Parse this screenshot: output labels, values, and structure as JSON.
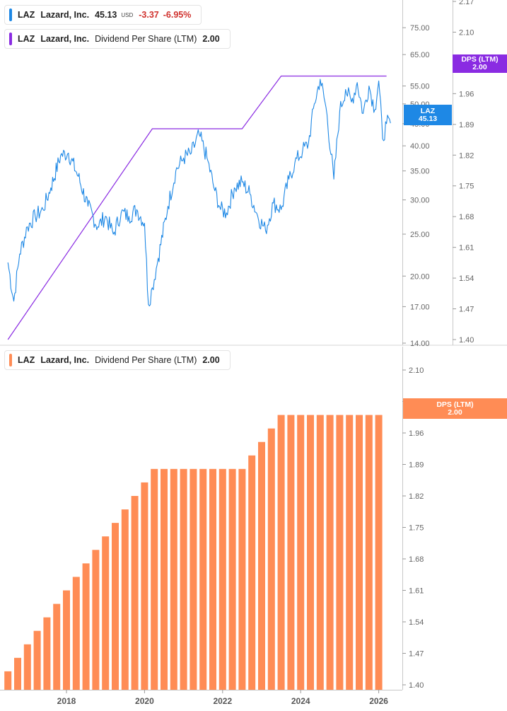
{
  "colors": {
    "price": "#1e88e5",
    "dps_line": "#8a2be2",
    "dps_bars": "#ff8c55",
    "negative": "#d0312d"
  },
  "legend_price": {
    "ticker": "LAZ",
    "name": "Lazard, Inc.",
    "price": "45.13",
    "currency": "USD",
    "change": "-3.37",
    "change_pct": "-6.95%"
  },
  "legend_dps_top": {
    "ticker": "LAZ",
    "name": "Lazard, Inc.",
    "metric": "Dividend Per Share (LTM)",
    "value": "2.00"
  },
  "legend_dps_bottom": {
    "ticker": "LAZ",
    "name": "Lazard, Inc.",
    "metric": "Dividend Per Share (LTM)",
    "value": "2.00"
  },
  "flags": {
    "price_ticker": "LAZ",
    "price_value": "45.13",
    "dps_top_label": "DPS (LTM)",
    "dps_top_value": "2.00",
    "dps_bottom_label": "DPS (LTM)",
    "dps_bottom_value": "2.00"
  },
  "chart_data": [
    {
      "type": "line",
      "scale": "log",
      "y_axis_ticks": [
        "75.00",
        "65.00",
        "55.00",
        "50.00",
        "45.00",
        "40.00",
        "35.00",
        "30.00",
        "25.00",
        "20.00",
        "17.00",
        "14.00"
      ],
      "ylim": [
        14,
        88
      ],
      "series": [
        {
          "name": "LAZ",
          "x": [
            2016.5,
            2016.65,
            2016.8,
            2017.0,
            2017.2,
            2017.4,
            2017.6,
            2017.85,
            2018.05,
            2018.3,
            2018.55,
            2018.8,
            2019.0,
            2019.2,
            2019.4,
            2019.6,
            2019.8,
            2020.0,
            2020.1,
            2020.2,
            2020.35,
            2020.6,
            2020.8,
            2021.0,
            2021.2,
            2021.4,
            2021.6,
            2021.8,
            2021.95,
            2022.1,
            2022.3,
            2022.5,
            2022.7,
            2022.9,
            2023.1,
            2023.3,
            2023.5,
            2023.7,
            2023.85,
            2024.05,
            2024.2,
            2024.35,
            2024.5,
            2024.65,
            2024.85,
            2025.0,
            2025.15,
            2025.3,
            2025.45,
            2025.6,
            2025.75,
            2025.9,
            2026.0,
            2026.1,
            2026.2,
            2026.3
          ],
          "y": [
            21.5,
            17.5,
            22.5,
            26.0,
            27.5,
            28.5,
            32.0,
            38.0,
            38.5,
            34.0,
            29.0,
            26.0,
            27.5,
            25.0,
            28.0,
            27.5,
            28.5,
            26.5,
            17.2,
            18.8,
            22.0,
            29.0,
            35.0,
            37.5,
            38.5,
            42.5,
            37.5,
            31.5,
            28.5,
            28.0,
            32.0,
            33.0,
            31.0,
            27.5,
            25.5,
            29.5,
            28.5,
            33.5,
            36.5,
            39.0,
            40.5,
            50.0,
            57.0,
            49.0,
            33.5,
            48.0,
            54.0,
            50.5,
            56.0,
            47.5,
            55.0,
            48.5,
            56.5,
            41.5,
            45.0,
            45.13
          ]
        },
        {
          "name": "DPS (LTM)",
          "x": [
            2016.5,
            2020.2,
            2022.5,
            2023.5,
            2026.2
          ],
          "y": [
            1.4,
            1.88,
            1.88,
            2.0,
            2.0
          ]
        }
      ],
      "right_axis_ticks": [
        "2.17",
        "2.10",
        "2.03",
        "1.96",
        "1.89",
        "1.82",
        "1.75",
        "1.68",
        "1.61",
        "1.54",
        "1.47",
        "1.40"
      ]
    },
    {
      "type": "bar",
      "series": [
        {
          "name": "DPS (LTM)",
          "x": [
            2016.5,
            2016.75,
            2017.0,
            2017.25,
            2017.5,
            2017.75,
            2018.0,
            2018.25,
            2018.5,
            2018.75,
            2019.0,
            2019.25,
            2019.5,
            2019.75,
            2020.0,
            2020.25,
            2020.5,
            2020.75,
            2021.0,
            2021.25,
            2021.5,
            2021.75,
            2022.0,
            2022.25,
            2022.5,
            2022.75,
            2023.0,
            2023.25,
            2023.5,
            2023.75,
            2024.0,
            2024.25,
            2024.5,
            2024.75,
            2025.0,
            2025.25,
            2025.5,
            2025.75,
            2026.0
          ],
          "values": [
            1.43,
            1.46,
            1.49,
            1.52,
            1.55,
            1.58,
            1.61,
            1.64,
            1.67,
            1.7,
            1.73,
            1.76,
            1.79,
            1.82,
            1.85,
            1.88,
            1.88,
            1.88,
            1.88,
            1.88,
            1.88,
            1.88,
            1.88,
            1.88,
            1.88,
            1.91,
            1.94,
            1.97,
            2.0,
            2.0,
            2.0,
            2.0,
            2.0,
            2.0,
            2.0,
            2.0,
            2.0,
            2.0,
            2.0
          ]
        }
      ],
      "y_axis_ticks": [
        "2.10",
        "2.03",
        "1.96",
        "1.89",
        "1.82",
        "1.75",
        "1.68",
        "1.61",
        "1.54",
        "1.47",
        "1.40"
      ],
      "ylim": [
        1.4,
        2.13
      ],
      "x_axis_ticks": [
        "2018",
        "2020",
        "2022",
        "2024",
        "2026"
      ]
    }
  ]
}
